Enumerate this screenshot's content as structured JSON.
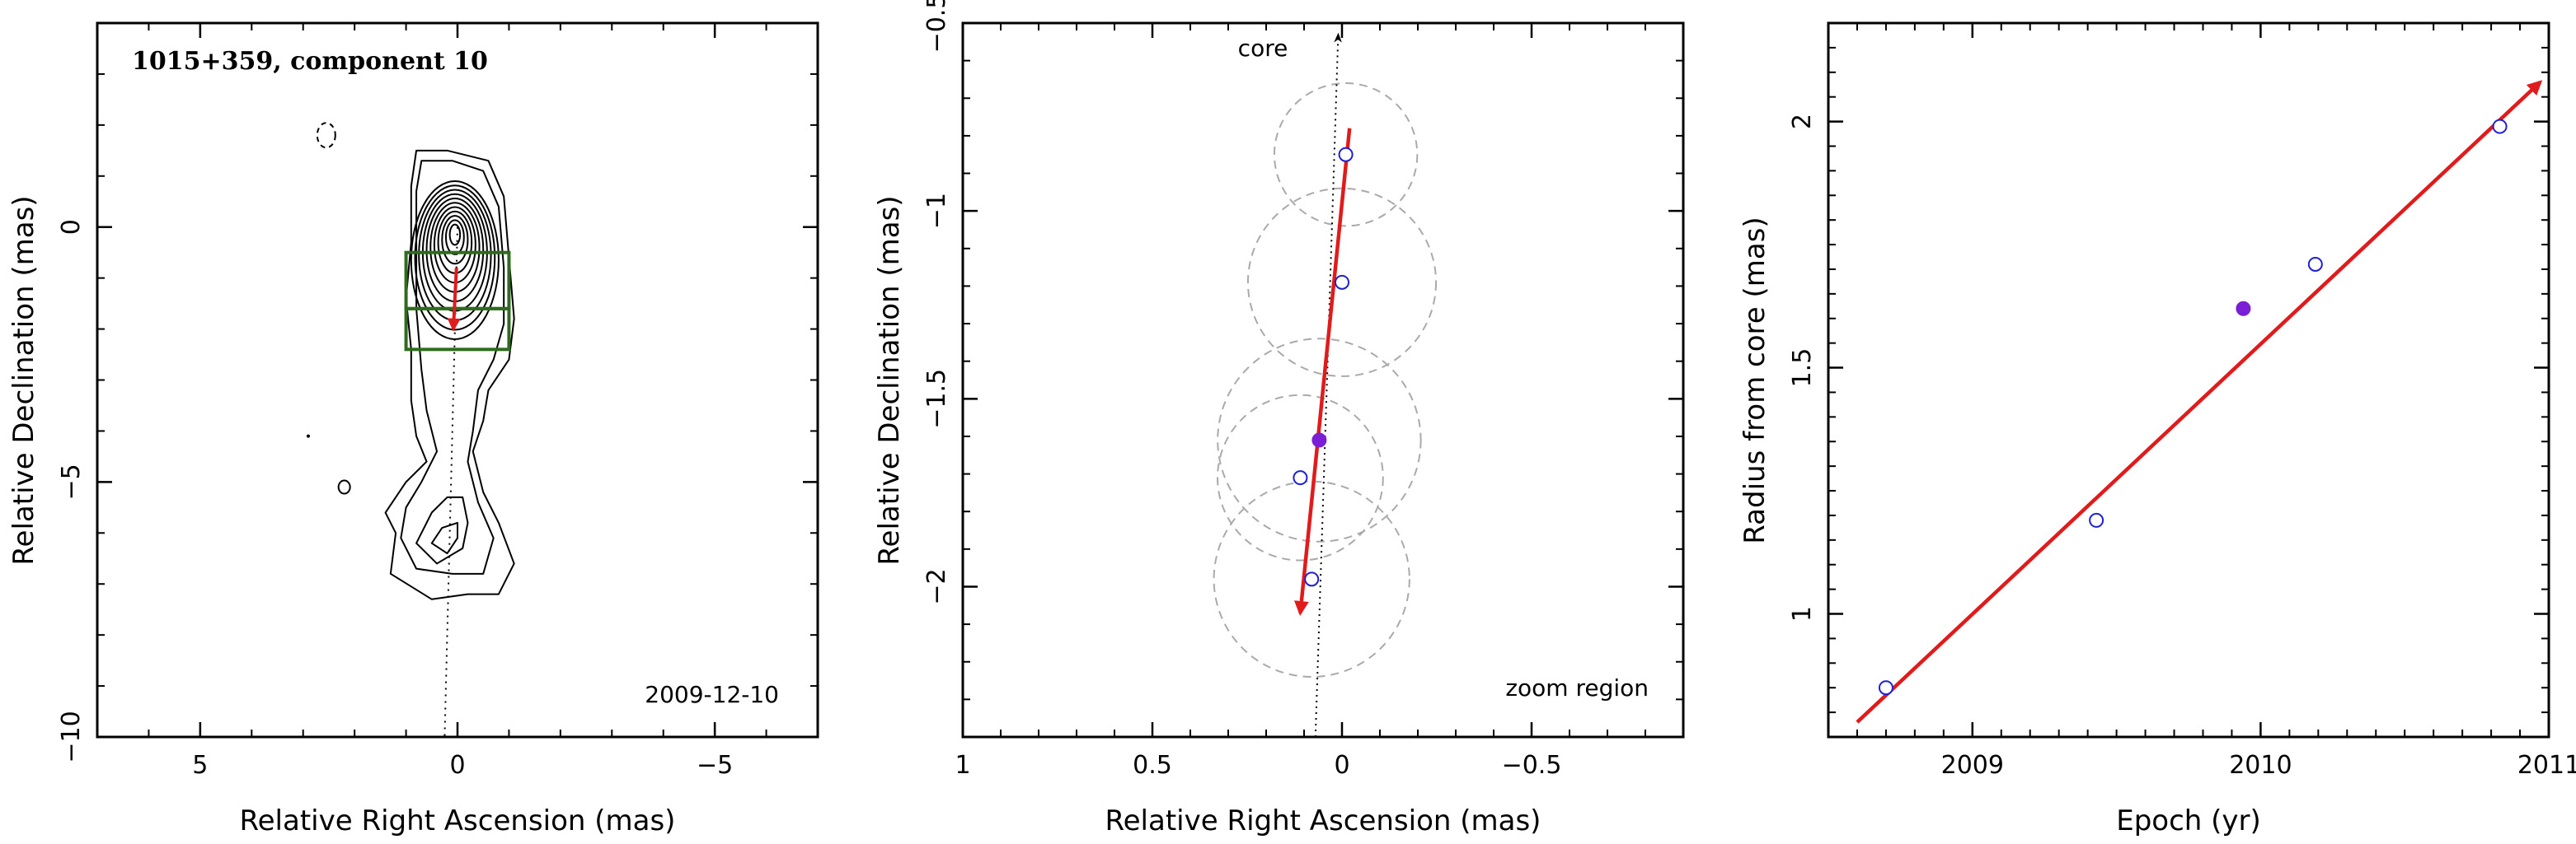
{
  "chart_data": [
    {
      "type": "contour",
      "title": "1015+359, component 10",
      "annotation": "2009-12-10",
      "xlabel": "Relative Right Ascension (mas)",
      "ylabel": "Relative Declination (mas)",
      "xlim": [
        7,
        -7
      ],
      "ylim": [
        -10,
        4
      ],
      "xticks": [
        {
          "v": 5,
          "t": "5"
        },
        {
          "v": 0,
          "t": "0"
        },
        {
          "v": -5,
          "t": "−5"
        }
      ],
      "yticks": [
        {
          "v": 0,
          "t": "0"
        },
        {
          "v": -5,
          "t": "−5"
        },
        {
          "v": -10,
          "t": "−10"
        }
      ],
      "jet_axis": [
        [
          0,
          0
        ],
        [
          0.25,
          -10
        ]
      ],
      "zoom_boxes": [
        {
          "x": [
            1,
            -1
          ],
          "y": [
            -0.5,
            -1.6
          ]
        },
        {
          "x": [
            1,
            -1
          ],
          "y": [
            -1.6,
            -2.4
          ]
        }
      ],
      "arrow": {
        "from": [
          0.02,
          -0.8
        ],
        "to": [
          0.08,
          -2.0
        ]
      },
      "contour_color": "#000000",
      "box_color": "#2e6b1f",
      "arrow_color": "#e11b1b"
    },
    {
      "type": "scatter",
      "annotation": "zoom region",
      "core_label": "core",
      "xlabel": "Relative Right Ascension (mas)",
      "ylabel": "Relative Declination (mas)",
      "xlim": [
        1,
        -0.9
      ],
      "ylim": [
        -2.4,
        -0.5
      ],
      "xticks": [
        {
          "v": 1,
          "t": "1"
        },
        {
          "v": 0.5,
          "t": "0.5"
        },
        {
          "v": 0,
          "t": "0"
        },
        {
          "v": -0.5,
          "t": "−0.5"
        }
      ],
      "yticks": [
        {
          "v": -0.5,
          "t": "−0.5"
        },
        {
          "v": -1,
          "t": "−1"
        },
        {
          "v": -1.5,
          "t": "−1.5"
        },
        {
          "v": -2,
          "t": "−2"
        }
      ],
      "points": [
        {
          "x": -0.01,
          "y": -0.85,
          "r": 0.19,
          "filled": false
        },
        {
          "x": 0.0,
          "y": -1.19,
          "r": 0.25,
          "filled": false
        },
        {
          "x": 0.06,
          "y": -1.61,
          "r": 0.27,
          "filled": true
        },
        {
          "x": 0.11,
          "y": -1.71,
          "r": 0.22,
          "filled": false
        },
        {
          "x": 0.08,
          "y": -1.98,
          "r": 0.26,
          "filled": false
        }
      ],
      "core_line": [
        [
          0.07,
          -2.4
        ],
        [
          0.01,
          -0.5
        ]
      ],
      "arrow": {
        "from": [
          -0.02,
          -0.78
        ],
        "to": [
          0.11,
          -2.07
        ]
      },
      "point_color": "#1f1fd6",
      "filled_color": "#7a1fd6",
      "circle_color": "#aaaaaa",
      "arrow_color": "#e11b1b"
    },
    {
      "type": "scatter",
      "xlabel": "Epoch (yr)",
      "ylabel": "Radius from core (mas)",
      "xlim": [
        2008.5,
        2011.0
      ],
      "ylim": [
        0.75,
        2.2
      ],
      "xticks": [
        {
          "v": 2009,
          "t": "2009"
        },
        {
          "v": 2010,
          "t": "2010"
        },
        {
          "v": 2011,
          "t": "2011"
        }
      ],
      "yticks": [
        {
          "v": 1,
          "t": "1"
        },
        {
          "v": 1.5,
          "t": "1.5"
        },
        {
          "v": 2,
          "t": "2"
        }
      ],
      "points": [
        {
          "x": 2008.7,
          "y": 0.85,
          "filled": false
        },
        {
          "x": 2009.43,
          "y": 1.19,
          "filled": false
        },
        {
          "x": 2009.94,
          "y": 1.62,
          "filled": true
        },
        {
          "x": 2010.19,
          "y": 1.71,
          "filled": false
        },
        {
          "x": 2010.83,
          "y": 1.99,
          "filled": false
        }
      ],
      "fit": {
        "from": [
          2008.6,
          0.78
        ],
        "to": [
          2010.97,
          2.08
        ]
      },
      "point_color": "#1f1fd6",
      "filled_color": "#7a1fd6",
      "fit_color": "#e11b1b"
    }
  ]
}
